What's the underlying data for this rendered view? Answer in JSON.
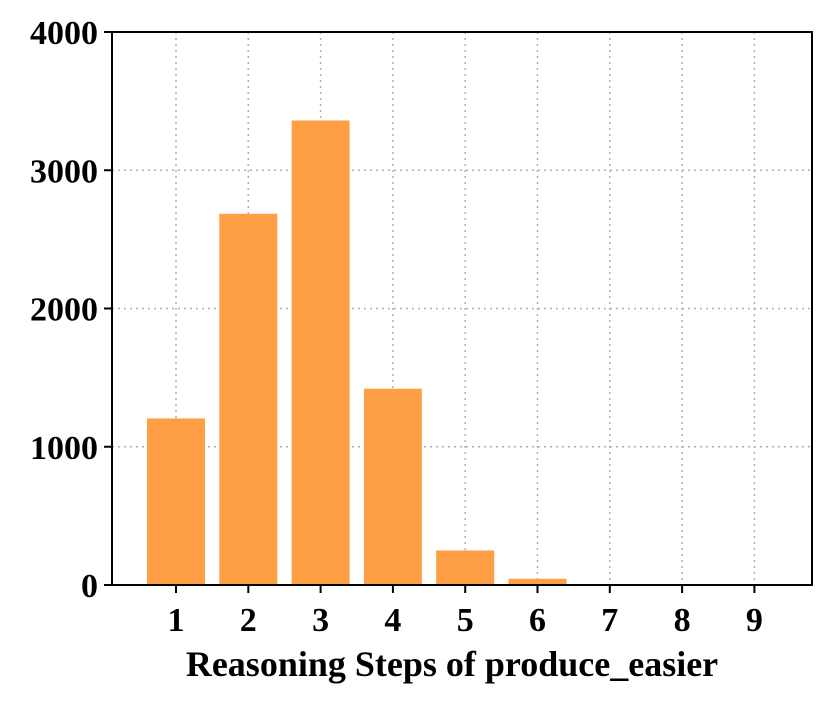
{
  "chart_data": {
    "type": "bar",
    "categories": [
      "1",
      "2",
      "3",
      "4",
      "5",
      "6",
      "7",
      "8",
      "9"
    ],
    "values": [
      1205,
      2685,
      3360,
      1420,
      250,
      45,
      5,
      2,
      1
    ],
    "title": "",
    "xlabel": "Reasoning Steps of produce_easier",
    "ylabel": "",
    "ylim": [
      0,
      4000
    ],
    "yticks": [
      0,
      1000,
      2000,
      3000,
      4000
    ],
    "grid": true,
    "bar_color": "#ff9f45"
  }
}
